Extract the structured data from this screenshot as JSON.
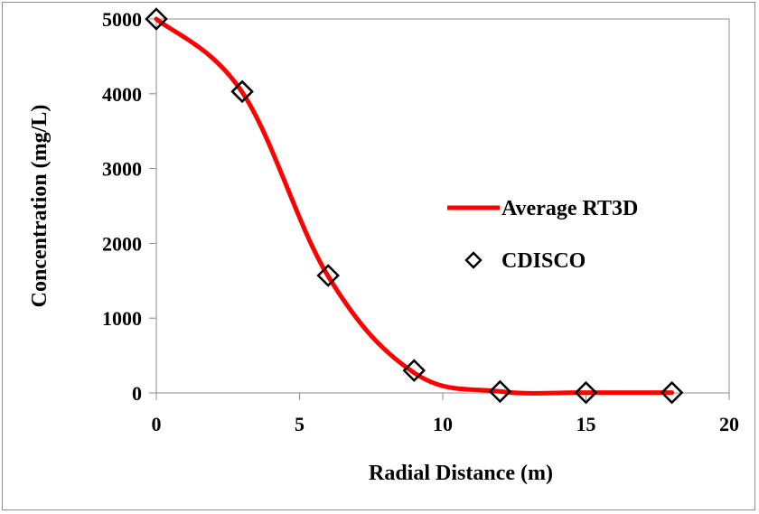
{
  "chart_data": {
    "type": "line",
    "title": "",
    "xlabel": "Radial Distance (m)",
    "ylabel": "Concentration (mg/L)",
    "xlim": [
      0,
      20
    ],
    "ylim": [
      0,
      5000
    ],
    "xticks": [
      0,
      5,
      10,
      15,
      20
    ],
    "yticks": [
      0,
      1000,
      2000,
      3000,
      4000,
      5000
    ],
    "grid": false,
    "legend_position": "right",
    "series": [
      {
        "name": "Average RT3D",
        "style": "line",
        "color": "#ff0000",
        "x": [
          0,
          3,
          6,
          9,
          12,
          15,
          18
        ],
        "y": [
          5000,
          4020,
          1560,
          270,
          20,
          5,
          5
        ]
      },
      {
        "name": "CDISCO",
        "style": "marker",
        "marker": "diamond-open",
        "color": "#000000",
        "x": [
          0,
          3,
          6,
          9,
          12,
          15,
          18
        ],
        "y": [
          5000,
          4030,
          1570,
          300,
          20,
          5,
          5
        ]
      }
    ]
  }
}
